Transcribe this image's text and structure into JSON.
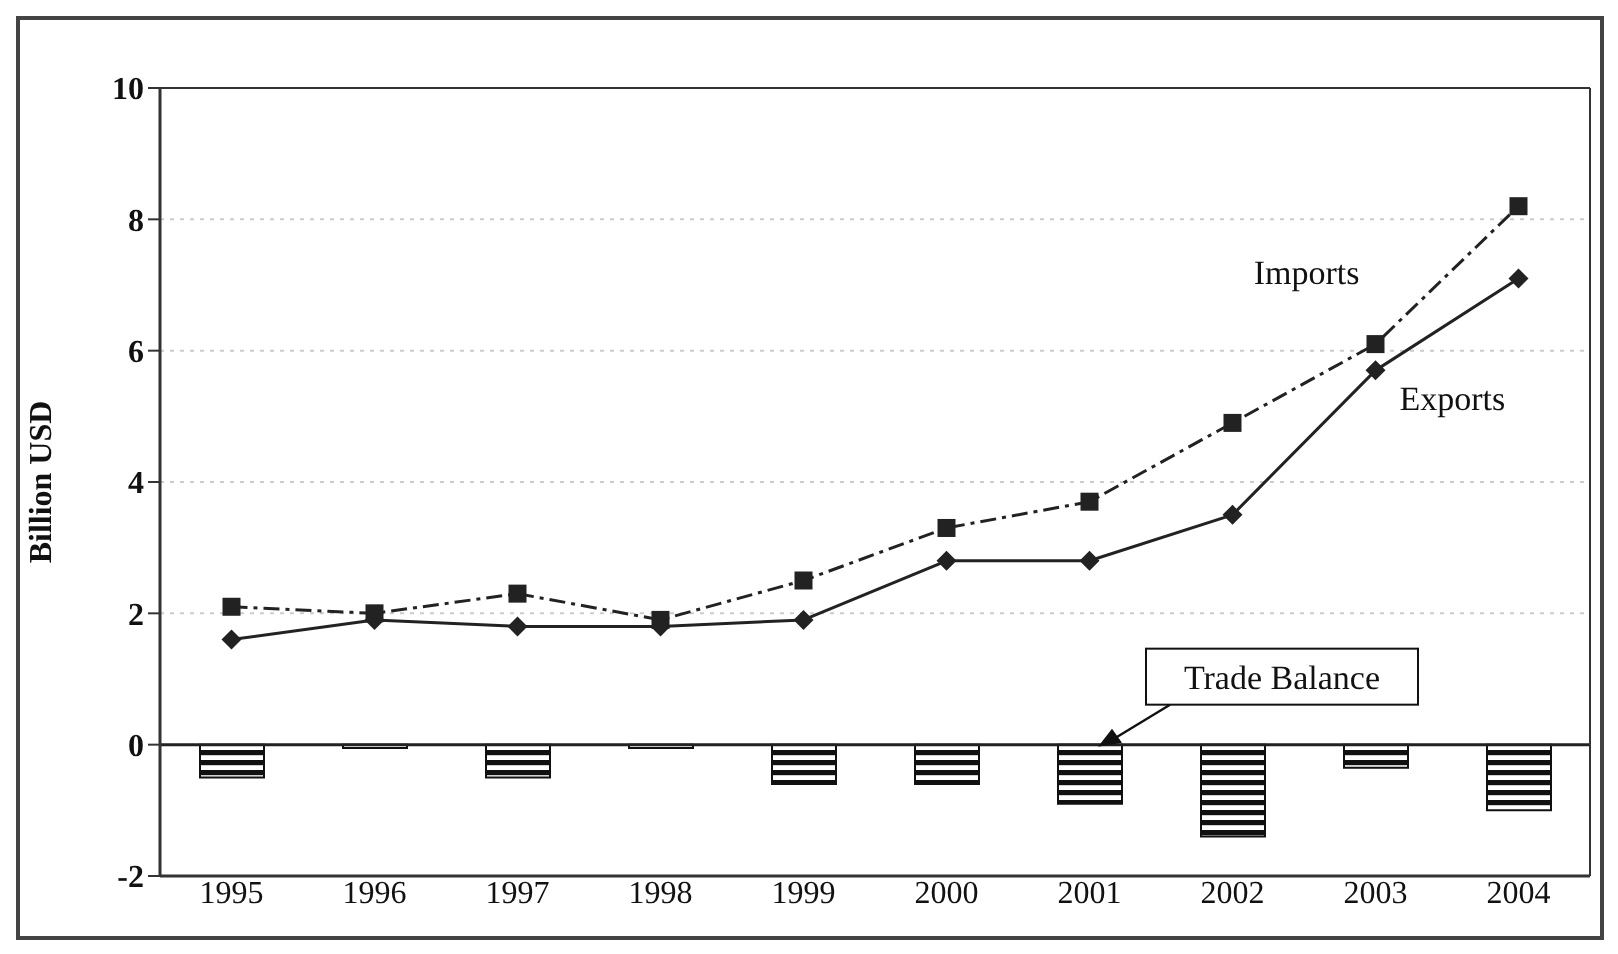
{
  "chart_data": {
    "type": "line",
    "ylabel": "Billion USD",
    "categories": [
      "1995",
      "1996",
      "1997",
      "1998",
      "1999",
      "2000",
      "2001",
      "2002",
      "2003",
      "2004"
    ],
    "series": [
      {
        "name": "Imports",
        "color": "#222222",
        "marker": "square",
        "line_style": "dashed",
        "values": [
          2.1,
          2.0,
          2.3,
          1.9,
          2.5,
          3.3,
          3.7,
          4.9,
          6.1,
          8.2
        ]
      },
      {
        "name": "Exports",
        "color": "#222222",
        "marker": "diamond",
        "line_style": "solid",
        "values": [
          1.6,
          1.9,
          1.8,
          1.8,
          1.9,
          2.8,
          2.8,
          3.5,
          5.7,
          7.1
        ]
      },
      {
        "name": "Trade Balance",
        "type": "bar",
        "color": "#111111",
        "values": [
          -0.5,
          -0.05,
          -0.5,
          -0.05,
          -0.6,
          -0.6,
          -0.9,
          -1.4,
          -0.35,
          -1.0
        ]
      }
    ],
    "ylim": [
      -2,
      10
    ],
    "yticks": [
      -2,
      0,
      2,
      4,
      6,
      8,
      10
    ],
    "grid": "y",
    "legend": false,
    "ref_lines": [
      {
        "axis": "y",
        "value": 0,
        "color": "#222222"
      }
    ]
  }
}
